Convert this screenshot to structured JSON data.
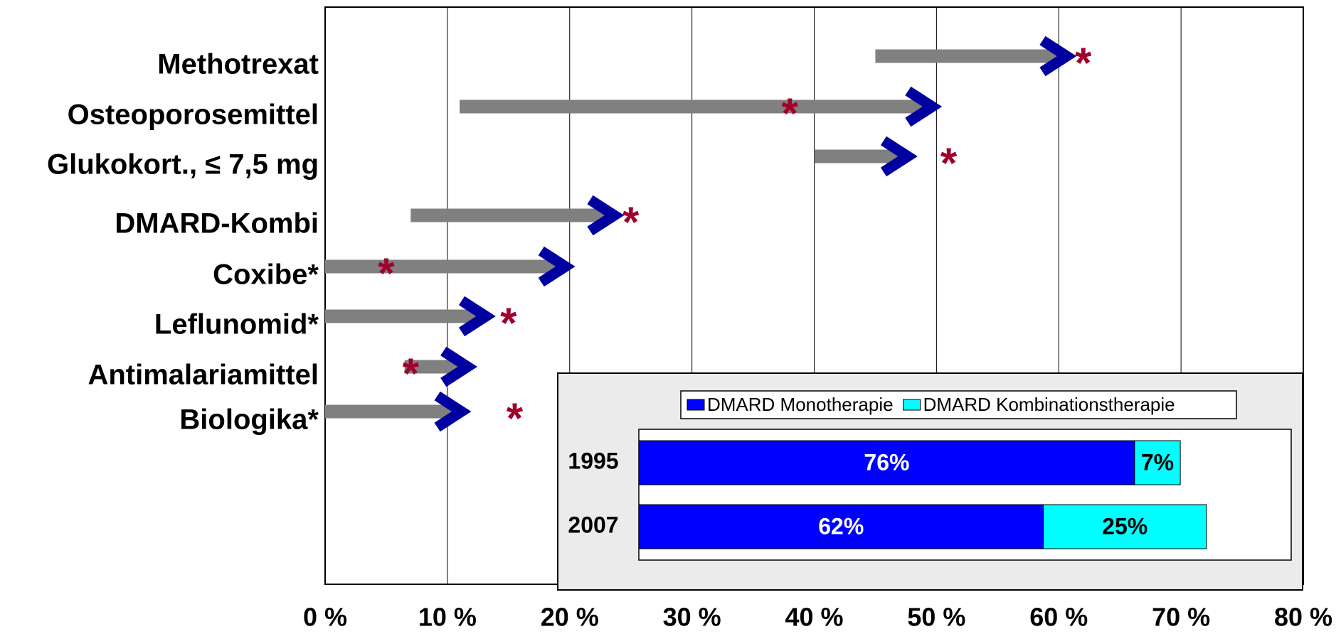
{
  "chart_data": [
    {
      "type": "arrow",
      "categories": [
        "Methotrexat",
        "Osteoporosemittel",
        "Glukokort., ≤ 7,5 mg",
        "DMARD-Kombi",
        "Coxibe*",
        "Leflunomid*",
        "Antimalariamittel",
        "Biologika*"
      ],
      "series": [
        {
          "name": "1995",
          "color": "#808080",
          "values": [
            45,
            11,
            40,
            7,
            0,
            0,
            6.5,
            0
          ]
        },
        {
          "name": "2007",
          "color": "#0000a0",
          "values": [
            61,
            50,
            48,
            24,
            20,
            13.5,
            12,
            11.5
          ]
        }
      ],
      "asterisks": [
        62,
        38,
        51,
        25,
        5,
        15,
        7,
        15.5
      ],
      "asterisk_label": "*",
      "asterisk_color": "#a0002a",
      "xlim": [
        0,
        80
      ],
      "xticks": [
        {
          "value": 0,
          "label": "0 %"
        },
        {
          "value": 10,
          "label": "10 %"
        },
        {
          "value": 20,
          "label": "20 %"
        },
        {
          "value": 30,
          "label": "30 %"
        },
        {
          "value": 40,
          "label": "40 %"
        },
        {
          "value": 50,
          "label": "50 %"
        },
        {
          "value": 60,
          "label": "60 %"
        },
        {
          "value": 70,
          "label": "70 %"
        },
        {
          "value": 80,
          "label": "80 %"
        }
      ],
      "grid": true
    },
    {
      "type": "stacked-bar",
      "orientation": "horizontal",
      "categories": [
        "1995",
        "2007"
      ],
      "series": [
        {
          "name": "DMARD Monotherapie",
          "color": "#0000ff",
          "values": [
            76,
            62
          ],
          "value_labels": [
            "76%",
            "62%"
          ]
        },
        {
          "name": "DMARD Kombinationstherapie",
          "color": "#00ffff",
          "values": [
            7,
            25
          ],
          "value_labels": [
            "7%",
            "25%"
          ]
        }
      ],
      "xlim": [
        0,
        100
      ],
      "legend": "top"
    }
  ]
}
